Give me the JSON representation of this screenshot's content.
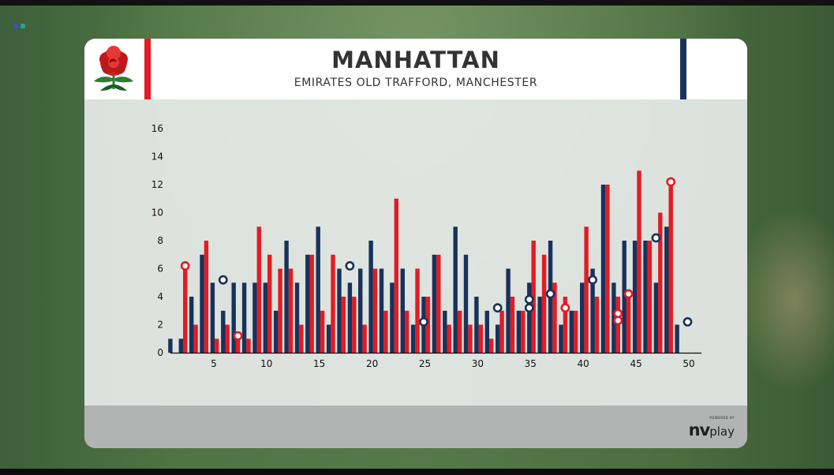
{
  "header": {
    "title": "MANHATTAN",
    "subtitle": "EMIRATES OLD TRAFFORD, MANCHESTER"
  },
  "branding": {
    "powered_by": "POWERED BY",
    "logo_nv": "nv",
    "logo_play": "play"
  },
  "colors": {
    "team1": "#e31b23",
    "team2": "#17325c",
    "accent_red": "#e31b23",
    "accent_navy": "#17325c"
  },
  "chart_data": {
    "type": "bar",
    "title": "MANHATTAN",
    "xlabel": "",
    "ylabel": "",
    "x_ticks": [
      5,
      10,
      15,
      20,
      25,
      30,
      35,
      40,
      45,
      50
    ],
    "y_ticks": [
      0,
      2,
      4,
      6,
      8,
      10,
      12,
      14,
      16
    ],
    "ylim": [
      0,
      16
    ],
    "xlim": [
      0.5,
      50.5
    ],
    "grid": false,
    "legend": "none",
    "series": [
      {
        "color": "#e31b23",
        "overs": [
          1,
          2,
          3,
          4,
          5,
          6,
          7,
          8,
          9,
          10,
          11,
          12,
          13,
          14,
          15,
          16,
          17,
          18,
          19,
          20,
          21,
          22,
          23,
          24,
          25,
          26,
          27,
          28,
          29,
          30,
          31,
          32,
          33,
          34,
          35,
          36,
          37,
          38,
          39,
          40,
          41,
          42,
          43,
          44,
          45,
          46,
          47,
          48
        ],
        "values": [
          0,
          6,
          2,
          8,
          1,
          2,
          1,
          1,
          9,
          7,
          6,
          6,
          2,
          7,
          3,
          7,
          4,
          4,
          2,
          6,
          3,
          11,
          3,
          6,
          4,
          7,
          2,
          3,
          2,
          2,
          1,
          3,
          4,
          3,
          8,
          7,
          5,
          4,
          3,
          9,
          4,
          12,
          4,
          4,
          13,
          8,
          10,
          12
        ],
        "wickets": [
          {
            "over": 2,
            "value": 6.2
          },
          {
            "over": 7,
            "value": 1.2
          },
          {
            "over": 38,
            "value": 3.2
          },
          {
            "over": 43,
            "value": 2.8
          },
          {
            "over": 43,
            "value": 2.3
          },
          {
            "over": 44,
            "value": 4.2
          },
          {
            "over": 48,
            "value": 12.2
          }
        ]
      },
      {
        "color": "#17325c",
        "overs": [
          1,
          2,
          3,
          4,
          5,
          6,
          7,
          8,
          9,
          10,
          11,
          12,
          13,
          14,
          15,
          16,
          17,
          18,
          19,
          20,
          21,
          22,
          23,
          24,
          25,
          26,
          27,
          28,
          29,
          30,
          31,
          32,
          33,
          34,
          35,
          36,
          37,
          38,
          39,
          40,
          41,
          42,
          43,
          44,
          45,
          46,
          47,
          48,
          49,
          50
        ],
        "values": [
          1,
          1,
          4,
          7,
          5,
          3,
          5,
          5,
          5,
          5,
          3,
          8,
          5,
          7,
          9,
          2,
          6,
          5,
          6,
          8,
          6,
          5,
          6,
          2,
          4,
          7,
          3,
          9,
          7,
          4,
          3,
          2,
          6,
          3,
          5,
          4,
          8,
          2,
          3,
          5,
          6,
          12,
          5,
          8,
          8,
          8,
          5,
          9,
          2,
          0
        ],
        "wickets": [
          {
            "over": 6,
            "value": 5.2
          },
          {
            "over": 18,
            "value": 6.2
          },
          {
            "over": 25,
            "value": 2.2
          },
          {
            "over": 32,
            "value": 3.2
          },
          {
            "over": 35,
            "value": 3.8
          },
          {
            "over": 35,
            "value": 3.2
          },
          {
            "over": 37,
            "value": 4.2
          },
          {
            "over": 41,
            "value": 5.2
          },
          {
            "over": 47,
            "value": 8.2
          },
          {
            "over": 50,
            "value": 2.2
          }
        ]
      }
    ]
  }
}
